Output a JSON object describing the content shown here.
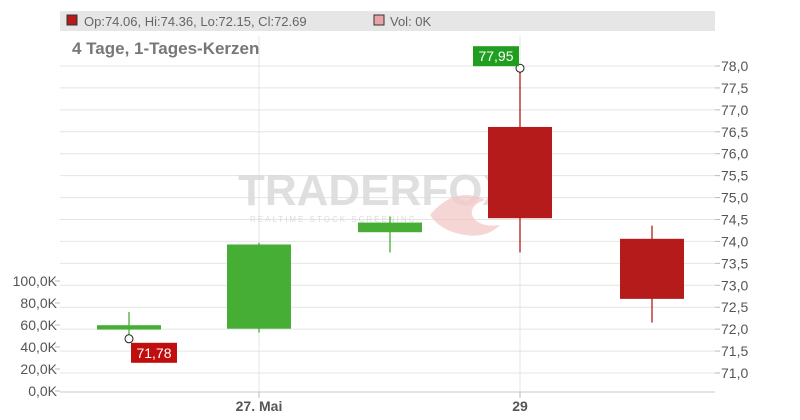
{
  "header": {
    "ohlc_text": "Op:74.06, Hi:74.36, Lo:72.15, Cl:72.69",
    "vol_text": "Vol: 0K",
    "ohlc_swatch_color": "#b51b1b",
    "vol_swatch_color": "#e9a3a8"
  },
  "watermark": {
    "main": "TRADERFOX",
    "sub": "REALTIME STOCK SCREENING"
  },
  "chart_data": {
    "type": "candlestick",
    "subtitle": "4 Tage, 1-Tages-Kerzen",
    "x_ticks": [
      "27. Mai",
      "29"
    ],
    "price_axis": {
      "ylim": [
        70.6,
        78.6
      ],
      "ticks": [
        "71,0",
        "71,5",
        "72,0",
        "72,5",
        "73,0",
        "73,5",
        "74,0",
        "74,5",
        "75,0",
        "75,5",
        "76,0",
        "76,5",
        "77,0",
        "77,5",
        "78,0"
      ],
      "tick_values": [
        71.0,
        71.5,
        72.0,
        72.5,
        73.0,
        73.5,
        74.0,
        74.5,
        75.0,
        75.5,
        76.0,
        76.5,
        77.0,
        77.5,
        78.0
      ]
    },
    "volume_axis": {
      "ticks": [
        "0,0K",
        "20,0K",
        "40,0K",
        "60,0K",
        "80,0K",
        "100,0K"
      ],
      "tick_values": [
        0,
        20,
        40,
        60,
        80,
        100
      ]
    },
    "candles": [
      {
        "open": 71.99,
        "high": 72.39,
        "low": 71.78,
        "close": 72.09,
        "color": "#46ae34"
      },
      {
        "open": 72.01,
        "high": 73.97,
        "low": 71.92,
        "close": 73.93,
        "color": "#46ae34"
      },
      {
        "open": 74.21,
        "high": 74.57,
        "low": 73.75,
        "close": 74.43,
        "color": "#46ae34"
      },
      {
        "open": 76.61,
        "high": 77.95,
        "low": 73.75,
        "close": 74.53,
        "color": "#b51b1b"
      },
      {
        "open": 74.06,
        "high": 74.36,
        "low": 72.15,
        "close": 72.69,
        "color": "#b51b1b"
      }
    ],
    "annotations": [
      {
        "text": "77,95",
        "value": 77.95,
        "candle": 3,
        "color": "#1f9e1f"
      },
      {
        "text": "71,78",
        "value": 71.78,
        "candle": 0,
        "color": "#c00d0d"
      }
    ],
    "grid": true
  }
}
